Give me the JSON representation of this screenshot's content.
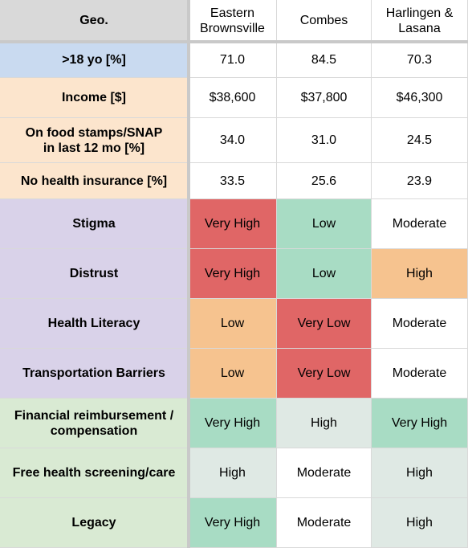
{
  "header": {
    "corner_label": "Geo.",
    "columns": [
      "Eastern\nBrownsville",
      "Combes",
      "Harlingen &\nLasana"
    ]
  },
  "rows": [
    {
      "label": ">18 yo [%]",
      "group": "age",
      "values": [
        "71.0",
        "84.5",
        "70.3"
      ],
      "levels": [
        "none",
        "none",
        "none"
      ]
    },
    {
      "label": "Income [$]",
      "group": "econ",
      "values": [
        "$38,600",
        "$37,800",
        "$46,300"
      ],
      "levels": [
        "none",
        "none",
        "none"
      ]
    },
    {
      "label": "On food stamps/SNAP\nin last 12 mo [%]",
      "group": "econ",
      "values": [
        "34.0",
        "31.0",
        "24.5"
      ],
      "levels": [
        "none",
        "none",
        "none"
      ]
    },
    {
      "label": "No health insurance [%]",
      "group": "econ",
      "values": [
        "33.5",
        "25.6",
        "23.9"
      ],
      "levels": [
        "none",
        "none",
        "none"
      ]
    },
    {
      "label": "Stigma",
      "group": "barrier",
      "values": [
        "Very High",
        "Low",
        "Moderate"
      ],
      "levels": [
        "red",
        "teal",
        "white"
      ]
    },
    {
      "label": "Distrust",
      "group": "barrier",
      "values": [
        "Very High",
        "Low",
        "High"
      ],
      "levels": [
        "red",
        "teal",
        "orange"
      ]
    },
    {
      "label": "Health Literacy",
      "group": "barrier",
      "values": [
        "Low",
        "Very Low",
        "Moderate"
      ],
      "levels": [
        "orange",
        "red",
        "white"
      ]
    },
    {
      "label": "Transportation Barriers",
      "group": "barrier",
      "values": [
        "Low",
        "Very Low",
        "Moderate"
      ],
      "levels": [
        "orange",
        "red",
        "white"
      ]
    },
    {
      "label": "Financial reimbursement /\ncompensation",
      "group": "motivator",
      "values": [
        "Very High",
        "High",
        "Very High"
      ],
      "levels": [
        "teal",
        "lightgreen",
        "teal"
      ]
    },
    {
      "label": "Free health screening/care",
      "group": "motivator",
      "values": [
        "High",
        "Moderate",
        "High"
      ],
      "levels": [
        "lightgreen",
        "white",
        "lightgreen"
      ]
    },
    {
      "label": "Legacy",
      "group": "motivator",
      "values": [
        "Very High",
        "Moderate",
        "High"
      ],
      "levels": [
        "teal",
        "white",
        "lightgreen"
      ]
    }
  ],
  "colors": {
    "header_gray": "#d9d9d9",
    "age_blue": "#c9daf0",
    "econ_peach": "#fce5cd",
    "barrier_purple": "#d9d2e9",
    "motivator_green": "#d9ead3",
    "level_red": "#e06666",
    "level_orange": "#f6c38f",
    "level_teal": "#a8dcc4",
    "level_lightgreen": "#dfe9e4",
    "level_white": "#ffffff"
  }
}
